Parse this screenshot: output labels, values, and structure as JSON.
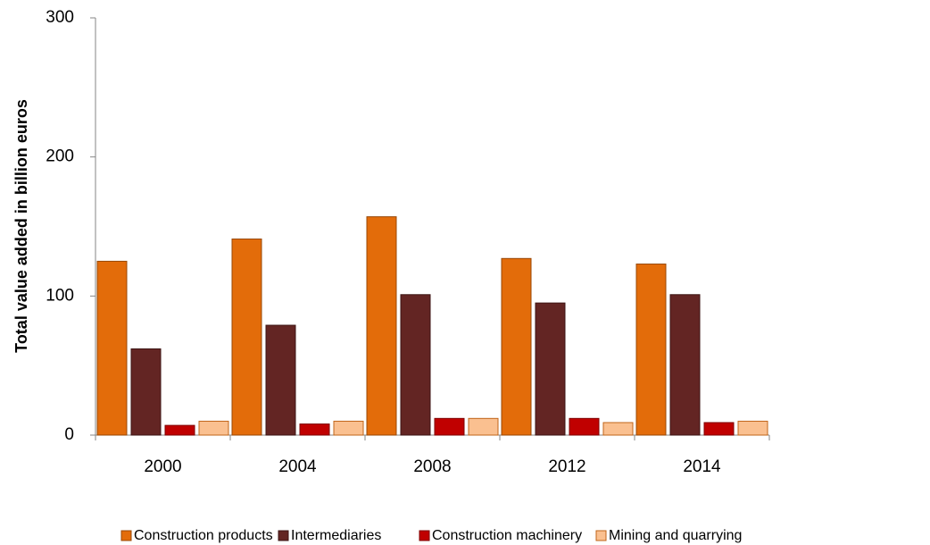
{
  "chart_data": {
    "type": "bar",
    "ylabel": "Total value added in billion euros",
    "categories": [
      "2000",
      "2004",
      "2008",
      "2012",
      "2014"
    ],
    "series": [
      {
        "name": "Construction products",
        "color": "#e36c0a",
        "values": [
          125,
          141,
          157,
          127,
          123
        ]
      },
      {
        "name": "Intermediaries",
        "color": "#632523",
        "values": [
          62,
          79,
          101,
          95,
          101
        ]
      },
      {
        "name": "Construction machinery",
        "color": "#c00000",
        "values": [
          7,
          8,
          12,
          12,
          9
        ]
      },
      {
        "name": "Mining and quarrying",
        "color": "#fac090",
        "values": [
          10,
          10,
          12,
          9,
          10
        ]
      }
    ],
    "ylim": [
      0,
      300
    ],
    "yticks": [
      0,
      100,
      200,
      300
    ],
    "legend": "bottom"
  }
}
